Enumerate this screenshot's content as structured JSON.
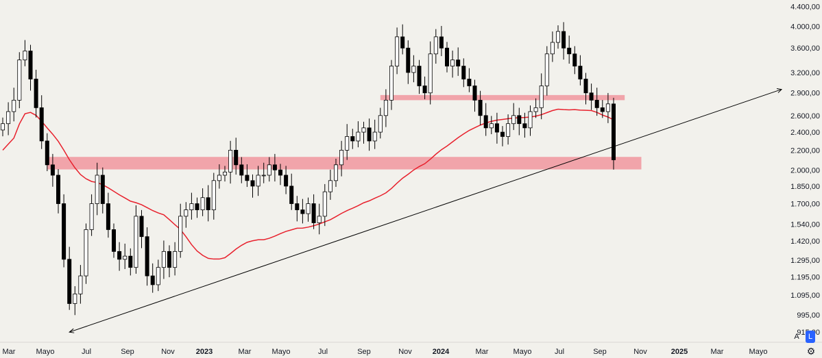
{
  "chart_data": {
    "type": "candlestick",
    "y_scale": "log",
    "ylim": [
      880,
      4450
    ],
    "y_ticks": [
      {
        "value": 915,
        "label": "915,00"
      },
      {
        "value": 995,
        "label": "995,00"
      },
      {
        "value": 1095,
        "label": "1.095,00"
      },
      {
        "value": 1195,
        "label": "1.195,00"
      },
      {
        "value": 1295,
        "label": "1.295,00"
      },
      {
        "value": 1420,
        "label": "1.420,00"
      },
      {
        "value": 1540,
        "label": "1.540,00"
      },
      {
        "value": 1700,
        "label": "1.700,00"
      },
      {
        "value": 1850,
        "label": "1.850,00"
      },
      {
        "value": 2000,
        "label": "2.000,00"
      },
      {
        "value": 2200,
        "label": "2.200,00"
      },
      {
        "value": 2400,
        "label": "2.400,00"
      },
      {
        "value": 2600,
        "label": "2.600,00"
      },
      {
        "value": 2900,
        "label": "2.900,00"
      },
      {
        "value": 3200,
        "label": "3.200,00"
      },
      {
        "value": 3600,
        "label": "3.600,00"
      },
      {
        "value": 4000,
        "label": "4.000,00"
      },
      {
        "value": 4400,
        "label": "4.400,00"
      }
    ],
    "x_ticks": [
      {
        "label": "Mar",
        "bold": false
      },
      {
        "label": "Mayo",
        "bold": false
      },
      {
        "label": "Jul",
        "bold": false
      },
      {
        "label": "Sep",
        "bold": false
      },
      {
        "label": "Nov",
        "bold": false
      },
      {
        "label": "2023",
        "bold": true
      },
      {
        "label": "Mar",
        "bold": false
      },
      {
        "label": "Mayo",
        "bold": false
      },
      {
        "label": "Jul",
        "bold": false
      },
      {
        "label": "Sep",
        "bold": false
      },
      {
        "label": "Nov",
        "bold": false
      },
      {
        "label": "2024",
        "bold": true
      },
      {
        "label": "Mar",
        "bold": false
      },
      {
        "label": "Mayo",
        "bold": false
      },
      {
        "label": "Jul",
        "bold": false
      },
      {
        "label": "Sep",
        "bold": false
      },
      {
        "label": "Nov",
        "bold": false
      },
      {
        "label": "2025",
        "bold": true
      },
      {
        "label": "Mar",
        "bold": false
      },
      {
        "label": "Mayo",
        "bold": false
      }
    ],
    "close_series": [
      2500,
      2650,
      2800,
      3400,
      3550,
      3100,
      2700,
      2300,
      2050,
      1950,
      1700,
      1300,
      1050,
      1100,
      1200,
      1500,
      1700,
      1950,
      1700,
      1500,
      1350,
      1300,
      1320,
      1250,
      1600,
      1450,
      1200,
      1150,
      1250,
      1350,
      1250,
      1350,
      1600,
      1650,
      1700,
      1650,
      1750,
      1650,
      1900,
      1950,
      1980,
      2200,
      2050,
      1950,
      1900,
      1850,
      1950,
      1950,
      2050,
      2000,
      1950,
      1850,
      1700,
      1650,
      1620,
      1700,
      1550,
      1600,
      1800,
      1900,
      2050,
      2200,
      2350,
      2300,
      2400,
      2450,
      2300,
      2400,
      2600,
      2800,
      3300,
      3800,
      3600,
      3200,
      3300,
      3000,
      2900,
      3500,
      3800,
      3600,
      3300,
      3400,
      3300,
      3100,
      3000,
      2800,
      2600,
      2450,
      2500,
      2400,
      2350,
      2500,
      2600,
      2500,
      2450,
      2650,
      2700,
      3000,
      3500,
      3700,
      3900,
      3600,
      3500,
      3300,
      3100,
      2900,
      2800,
      2700,
      2650,
      2750,
      2100
    ],
    "support_zones": [
      {
        "low": 2005,
        "high": 2130,
        "from_index": 8,
        "to_index": 115
      },
      {
        "low": 2800,
        "high": 2870,
        "from_index": 68,
        "to_index": 112
      }
    ],
    "colors": {
      "up": "#ffffff",
      "down": "#000000",
      "wick": "#000000",
      "ma": "#e8202c",
      "zone": "#f08a94"
    }
  },
  "scale_buttons": {
    "auto": "A",
    "log": "L"
  },
  "settings_icon": "gear-icon"
}
